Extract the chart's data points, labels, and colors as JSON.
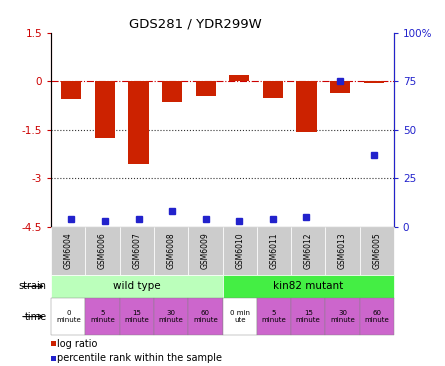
{
  "title": "GDS281 / YDR299W",
  "samples": [
    "GSM6004",
    "GSM6006",
    "GSM6007",
    "GSM6008",
    "GSM6009",
    "GSM6010",
    "GSM6011",
    "GSM6012",
    "GSM6013",
    "GSM6005"
  ],
  "log_ratio": [
    -0.55,
    -1.75,
    -2.55,
    -0.65,
    -0.45,
    0.2,
    -0.5,
    -1.55,
    -0.35,
    -0.05
  ],
  "percentile_rank": [
    4,
    3,
    4,
    8,
    4,
    3,
    4,
    5,
    75,
    37
  ],
  "ylim_left": [
    -4.5,
    1.5
  ],
  "ylim_right": [
    0,
    100
  ],
  "yticks_left": [
    1.5,
    0,
    -1.5,
    -3,
    -4.5
  ],
  "ytick_left_labels": [
    "1.5",
    "0",
    "-1.5",
    "-3",
    "-4.5"
  ],
  "yticks_right": [
    100,
    75,
    50,
    25,
    0
  ],
  "ytick_right_labels": [
    "100%",
    "75",
    "50",
    "25",
    "0"
  ],
  "hlines": [
    0,
    -1.5,
    -3
  ],
  "hline_styles": [
    "dashdot",
    "dotted",
    "dotted"
  ],
  "hline_colors": [
    "#cc0000",
    "#333333",
    "#333333"
  ],
  "bar_color": "#cc2200",
  "dot_color": "#2222cc",
  "strain_wt_label": "wild type",
  "strain_kin_label": "kin82 mutant",
  "strain_wt_color": "#bbffbb",
  "strain_kin_color": "#44ee44",
  "time_labels": [
    "0\nminute",
    "5\nminute",
    "15\nminute",
    "30\nminute",
    "60\nminute",
    "0 min\nute",
    "5\nminute",
    "15\nminute",
    "30\nminute",
    "60\nminute"
  ],
  "time_colors": [
    "white",
    "#cc66cc",
    "#cc66cc",
    "#cc66cc",
    "#cc66cc",
    "white",
    "#cc66cc",
    "#cc66cc",
    "#cc66cc",
    "#cc66cc"
  ],
  "gsm_box_color": "#cccccc",
  "legend_log_ratio": "log ratio",
  "legend_percentile": "percentile rank within the sample"
}
